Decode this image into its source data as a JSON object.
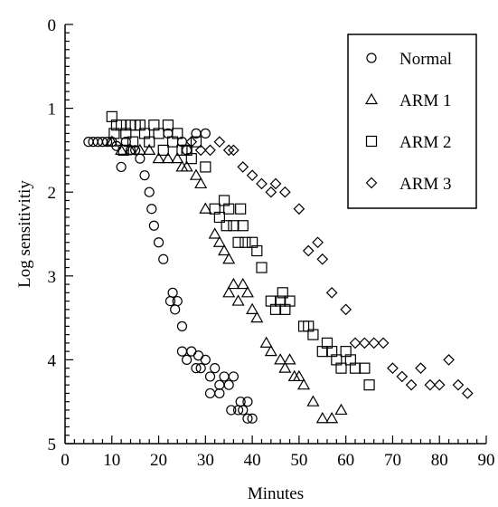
{
  "chart_data": {
    "type": "scatter",
    "xlabel": "Minutes",
    "ylabel": "Log sensitivitiy",
    "xlim": [
      0,
      90
    ],
    "ylim": [
      0,
      5
    ],
    "y_inverted": true,
    "x_ticks": [
      0,
      10,
      20,
      30,
      40,
      50,
      60,
      70,
      80,
      90
    ],
    "y_ticks": [
      0,
      1,
      2,
      3,
      4,
      5
    ],
    "x_tick_labels": [
      "0",
      "10",
      "20",
      "30",
      "40",
      "50",
      "60",
      "70",
      "80",
      "90"
    ],
    "y_tick_labels": [
      "0",
      "1",
      "2",
      "3",
      "4",
      "5"
    ],
    "grid": false,
    "legend_position": "top-right",
    "series": [
      {
        "name": "Normal",
        "marker": "circle",
        "points": [
          [
            5,
            1.4
          ],
          [
            6,
            1.4
          ],
          [
            7,
            1.4
          ],
          [
            8,
            1.4
          ],
          [
            9,
            1.4
          ],
          [
            10,
            1.4
          ],
          [
            11,
            1.45
          ],
          [
            12,
            1.7
          ],
          [
            13,
            1.4
          ],
          [
            14,
            1.5
          ],
          [
            15,
            1.5
          ],
          [
            16,
            1.6
          ],
          [
            17,
            1.8
          ],
          [
            18,
            2.0
          ],
          [
            18.5,
            2.2
          ],
          [
            19,
            2.4
          ],
          [
            20,
            2.6
          ],
          [
            21,
            2.8
          ],
          [
            22,
            1.3
          ],
          [
            23,
            3.2
          ],
          [
            23.5,
            3.4
          ],
          [
            22.5,
            3.3
          ],
          [
            24,
            3.3
          ],
          [
            25,
            3.6
          ],
          [
            25,
            3.9
          ],
          [
            26,
            4.0
          ],
          [
            27,
            3.9
          ],
          [
            28,
            4.1
          ],
          [
            28.5,
            3.95
          ],
          [
            29,
            4.1
          ],
          [
            30,
            4.0
          ],
          [
            31,
            4.2
          ],
          [
            31,
            4.4
          ],
          [
            32,
            4.1
          ],
          [
            33,
            4.3
          ],
          [
            33,
            4.4
          ],
          [
            34,
            4.2
          ],
          [
            35,
            4.3
          ],
          [
            35.5,
            4.6
          ],
          [
            36,
            4.2
          ],
          [
            37,
            4.6
          ],
          [
            37.5,
            4.5
          ],
          [
            38,
            4.6
          ],
          [
            39,
            4.5
          ],
          [
            39,
            4.7
          ],
          [
            40,
            4.7
          ],
          [
            25,
            1.4
          ],
          [
            28,
            1.3
          ],
          [
            26,
            1.5
          ],
          [
            30,
            1.3
          ]
        ]
      },
      {
        "name": "ARM 1",
        "marker": "triangle",
        "points": [
          [
            10,
            1.4
          ],
          [
            12,
            1.5
          ],
          [
            14,
            1.5
          ],
          [
            16,
            1.5
          ],
          [
            18,
            1.5
          ],
          [
            20,
            1.6
          ],
          [
            22,
            1.6
          ],
          [
            24,
            1.6
          ],
          [
            25,
            1.7
          ],
          [
            26,
            1.7
          ],
          [
            28,
            1.8
          ],
          [
            29,
            1.9
          ],
          [
            30,
            2.2
          ],
          [
            32,
            2.5
          ],
          [
            33,
            2.6
          ],
          [
            34,
            2.7
          ],
          [
            35,
            2.8
          ],
          [
            35,
            3.2
          ],
          [
            36,
            3.1
          ],
          [
            37,
            3.3
          ],
          [
            38,
            3.1
          ],
          [
            39,
            3.2
          ],
          [
            40,
            3.4
          ],
          [
            41,
            3.5
          ],
          [
            43,
            3.8
          ],
          [
            44,
            3.9
          ],
          [
            46,
            4.0
          ],
          [
            47,
            4.1
          ],
          [
            48,
            4.0
          ],
          [
            49,
            4.2
          ],
          [
            50,
            4.2
          ],
          [
            51,
            4.3
          ],
          [
            53,
            4.5
          ],
          [
            55,
            4.7
          ],
          [
            57,
            4.7
          ],
          [
            59,
            4.6
          ]
        ]
      },
      {
        "name": "ARM 2",
        "marker": "square",
        "points": [
          [
            10,
            1.1
          ],
          [
            10.5,
            1.3
          ],
          [
            11,
            1.2
          ],
          [
            12,
            1.2
          ],
          [
            12.5,
            1.5
          ],
          [
            13,
            1.3
          ],
          [
            14,
            1.2
          ],
          [
            14.5,
            1.4
          ],
          [
            15,
            1.2
          ],
          [
            16,
            1.2
          ],
          [
            17,
            1.3
          ],
          [
            18,
            1.4
          ],
          [
            19,
            1.2
          ],
          [
            20,
            1.3
          ],
          [
            21,
            1.5
          ],
          [
            22,
            1.2
          ],
          [
            23,
            1.4
          ],
          [
            24,
            1.3
          ],
          [
            25,
            1.5
          ],
          [
            26,
            1.5
          ],
          [
            27,
            1.6
          ],
          [
            28,
            1.4
          ],
          [
            30,
            1.7
          ],
          [
            32,
            2.2
          ],
          [
            33,
            2.3
          ],
          [
            34,
            2.1
          ],
          [
            34.5,
            2.4
          ],
          [
            35,
            2.2
          ],
          [
            36,
            2.4
          ],
          [
            37,
            2.6
          ],
          [
            37.5,
            2.2
          ],
          [
            38,
            2.4
          ],
          [
            38.5,
            2.6
          ],
          [
            40,
            2.6
          ],
          [
            41,
            2.7
          ],
          [
            42,
            2.9
          ],
          [
            44,
            3.3
          ],
          [
            45,
            3.4
          ],
          [
            46,
            3.3
          ],
          [
            46.5,
            3.2
          ],
          [
            47,
            3.4
          ],
          [
            48,
            3.3
          ],
          [
            51,
            3.6
          ],
          [
            52,
            3.6
          ],
          [
            53,
            3.7
          ],
          [
            55,
            3.9
          ],
          [
            56,
            3.8
          ],
          [
            57,
            3.9
          ],
          [
            58,
            4.0
          ],
          [
            59,
            4.1
          ],
          [
            60,
            3.9
          ],
          [
            61,
            4.0
          ],
          [
            62,
            4.1
          ],
          [
            64,
            4.1
          ],
          [
            65,
            4.3
          ]
        ]
      },
      {
        "name": "ARM 3",
        "marker": "diamond",
        "points": [
          [
            27,
            1.4
          ],
          [
            29,
            1.5
          ],
          [
            31,
            1.5
          ],
          [
            33,
            1.4
          ],
          [
            35,
            1.5
          ],
          [
            36,
            1.5
          ],
          [
            38,
            1.7
          ],
          [
            40,
            1.8
          ],
          [
            42,
            1.9
          ],
          [
            44,
            2.0
          ],
          [
            45,
            1.9
          ],
          [
            47,
            2.0
          ],
          [
            50,
            2.2
          ],
          [
            52,
            2.7
          ],
          [
            54,
            2.6
          ],
          [
            55,
            2.8
          ],
          [
            57,
            3.2
          ],
          [
            60,
            3.4
          ],
          [
            62,
            3.8
          ],
          [
            64,
            3.8
          ],
          [
            66,
            3.8
          ],
          [
            68,
            3.8
          ],
          [
            70,
            4.1
          ],
          [
            72,
            4.2
          ],
          [
            74,
            4.3
          ],
          [
            76,
            4.1
          ],
          [
            78,
            4.3
          ],
          [
            80,
            4.3
          ],
          [
            82,
            4.0
          ],
          [
            84,
            4.3
          ],
          [
            86,
            4.4
          ]
        ]
      }
    ]
  }
}
